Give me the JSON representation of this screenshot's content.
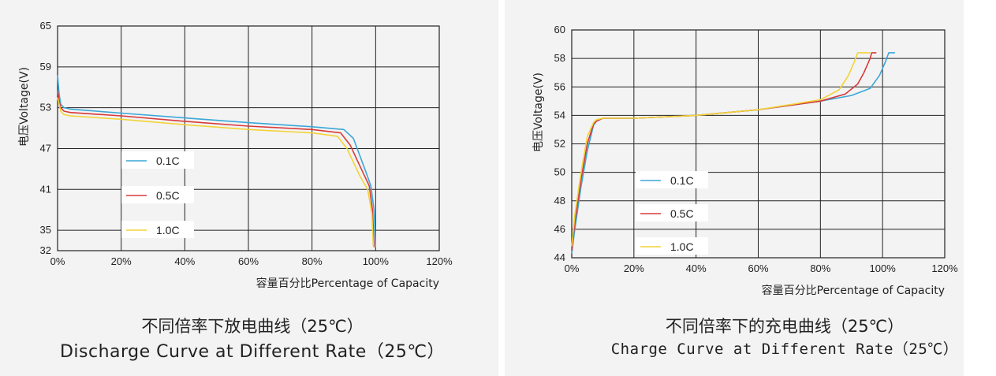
{
  "chart_data": [
    {
      "type": "line",
      "ylabel": "电压Voltage(V)",
      "xlabel": "容量百分比Percentage of Capacity",
      "title_zh": "不同倍率下放电曲线（25℃）",
      "title_en": "Discharge Curve at Different Rate（25℃）",
      "xlim": [
        0,
        120
      ],
      "ylim": [
        32,
        65
      ],
      "xticks": [
        "0%",
        "20%",
        "40%",
        "60%",
        "80%",
        "100%",
        "120%"
      ],
      "yticks": [
        "32",
        "35",
        "41",
        "47",
        "53",
        "59",
        "65"
      ],
      "ytick_values": [
        32,
        35,
        41,
        47,
        53,
        59,
        65
      ],
      "grid": true,
      "legend_position": "center-left",
      "series": [
        {
          "name": "0.1C",
          "color": "#3ba7d8",
          "x": [
            0,
            0.5,
            1,
            2,
            4,
            20,
            40,
            60,
            80,
            90,
            93,
            95,
            97,
            98.5,
            99.5,
            100
          ],
          "y": [
            57.8,
            55,
            53.5,
            53,
            52.8,
            52.2,
            51.5,
            50.8,
            50.2,
            49.8,
            48.5,
            46,
            43.5,
            41.5,
            38,
            32.5
          ]
        },
        {
          "name": "0.5C",
          "color": "#d93a3a",
          "x": [
            0,
            0.5,
            1,
            2,
            4,
            20,
            40,
            60,
            80,
            89,
            92,
            94,
            96,
            98,
            99,
            99.5
          ],
          "y": [
            55.5,
            54,
            53,
            52.5,
            52.3,
            51.8,
            51,
            50.3,
            49.8,
            49.3,
            47.5,
            45.5,
            43.5,
            41.5,
            38,
            32.5
          ]
        },
        {
          "name": "1.0C",
          "color": "#f2d338",
          "x": [
            0,
            0.5,
            1,
            2,
            4,
            20,
            40,
            60,
            80,
            88,
            91,
            93,
            95,
            97.5,
            98.8,
            99.3
          ],
          "y": [
            54.5,
            53.5,
            52.5,
            52,
            51.8,
            51.3,
            50.5,
            49.8,
            49.3,
            48.8,
            47,
            45,
            43,
            41,
            37.5,
            32.5
          ]
        }
      ]
    },
    {
      "type": "line",
      "ylabel": "电压Voltage(V)",
      "xlabel": "容量百分比Percentage of Capacity",
      "title_zh": "不同倍率下的充电曲线（25℃）",
      "title_en": "Charge Curve at Different Rate（25℃）",
      "xlim": [
        0,
        120
      ],
      "ylim": [
        44,
        60
      ],
      "xticks": [
        "0%",
        "20%",
        "40%",
        "60%",
        "80%",
        "100%",
        "120%"
      ],
      "yticks": [
        "44",
        "46",
        "48",
        "50",
        "52",
        "54",
        "56",
        "58",
        "60"
      ],
      "ytick_values": [
        44,
        46,
        48,
        50,
        52,
        54,
        56,
        58,
        60
      ],
      "grid": true,
      "legend_position": "bottom-left",
      "series": [
        {
          "name": "0.1C",
          "color": "#3ba7d8",
          "x": [
            0,
            1,
            3,
            5,
            7,
            8,
            10,
            20,
            40,
            60,
            80,
            90,
            96,
            99,
            101,
            102,
            104
          ],
          "y": [
            44.3,
            46,
            49,
            51.5,
            53.3,
            53.6,
            53.8,
            53.8,
            54,
            54.4,
            55,
            55.4,
            55.9,
            56.8,
            57.8,
            58.4,
            58.4
          ]
        },
        {
          "name": "0.5C",
          "color": "#d93a3a",
          "x": [
            0,
            1,
            3,
            5,
            7,
            8,
            10,
            20,
            40,
            60,
            80,
            88,
            92,
            94,
            96,
            96.5,
            98
          ],
          "y": [
            44.5,
            46.5,
            49.5,
            52,
            53.4,
            53.6,
            53.8,
            53.8,
            54,
            54.4,
            55,
            55.5,
            56.2,
            57,
            58,
            58.4,
            58.4
          ]
        },
        {
          "name": "1.0C",
          "color": "#f2d338",
          "x": [
            0,
            1,
            3,
            5,
            7,
            8,
            10,
            20,
            40,
            60,
            80,
            86,
            89,
            91,
            92,
            94,
            96
          ],
          "y": [
            44.8,
            47,
            50,
            52.5,
            53.5,
            53.7,
            53.8,
            53.8,
            54,
            54.4,
            55.1,
            55.8,
            56.8,
            57.8,
            58.4,
            58.4,
            58.4
          ]
        }
      ]
    }
  ]
}
